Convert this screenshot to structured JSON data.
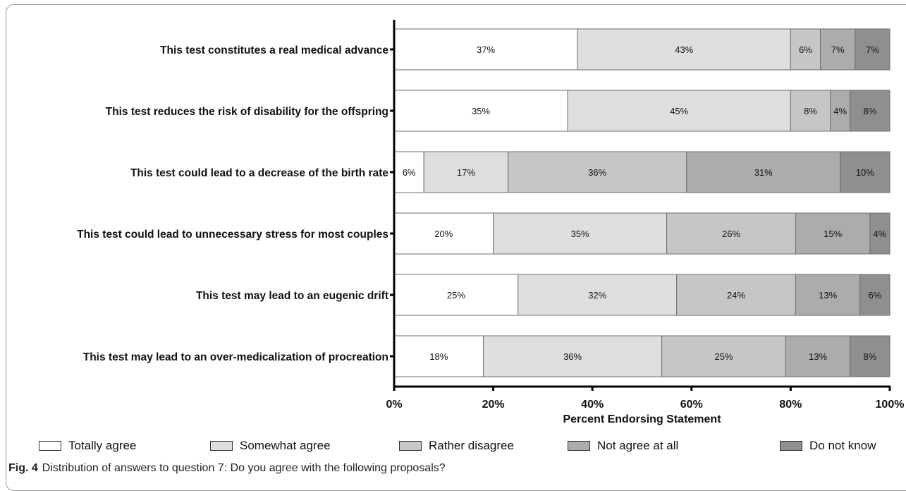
{
  "chart_data": {
    "type": "bar",
    "orientation": "horizontal",
    "stacked": true,
    "categories": [
      "This test constitutes a real medical advance",
      "This test reduces the risk of disability for the offspring",
      "This test could lead to a decrease of the birth rate",
      "This test could lead to unnecessary stress for most couples",
      "This test may lead to an eugenic drift",
      "This test may lead to an over-medicalization of procreation"
    ],
    "series": [
      {
        "name": "Totally agree",
        "color": "#ffffff",
        "values": [
          37,
          35,
          6,
          20,
          25,
          18
        ]
      },
      {
        "name": "Somewhat agree",
        "color": "#dedede",
        "values": [
          43,
          45,
          17,
          35,
          32,
          36
        ]
      },
      {
        "name": "Rather disagree",
        "color": "#c6c6c6",
        "values": [
          6,
          8,
          36,
          26,
          24,
          25
        ]
      },
      {
        "name": "Not agree at all",
        "color": "#acacac",
        "values": [
          7,
          4,
          31,
          15,
          13,
          13
        ]
      },
      {
        "name": "Do not know",
        "color": "#8f8f8f",
        "values": [
          7,
          8,
          10,
          4,
          6,
          8
        ]
      }
    ],
    "xlabel": "Percent Endorsing Statement",
    "ylabel": "",
    "xlim": [
      0,
      100
    ],
    "xticks": [
      "0%",
      "20%",
      "40%",
      "60%",
      "80%",
      "100%"
    ],
    "grid": false,
    "legend_position": "bottom"
  },
  "caption": {
    "label": "Fig. 4",
    "text": "Distribution of answers to question 7: Do you agree with the following proposals?"
  }
}
